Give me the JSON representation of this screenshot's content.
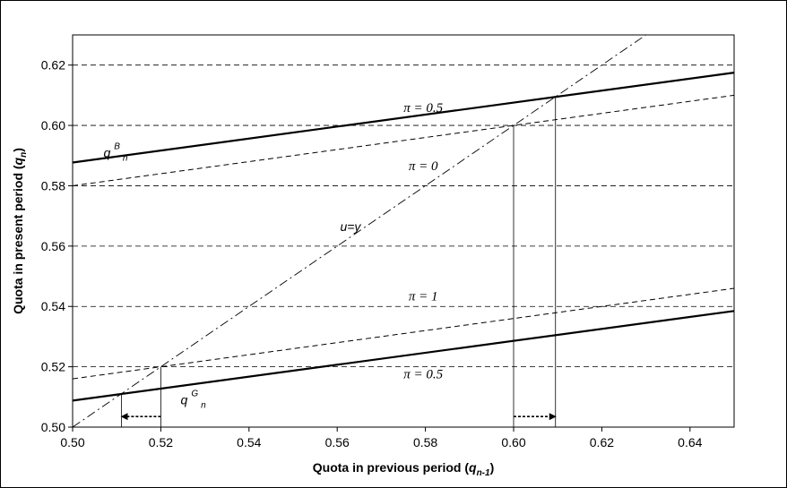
{
  "chart_data": {
    "type": "line",
    "xlabel": {
      "main": "Quota in previous period (",
      "var": "q",
      "sub": "n-1",
      "close": ")"
    },
    "ylabel": {
      "main": "Quota in present period (",
      "var": "q",
      "sub": "n",
      "close": ")"
    },
    "xlim": [
      0.5,
      0.65
    ],
    "ylim": [
      0.5,
      0.63
    ],
    "xticks": [
      "0.50",
      "0.52",
      "0.54",
      "0.56",
      "0.58",
      "0.60",
      "0.62",
      "0.64"
    ],
    "yticks": [
      "0.50",
      "0.52",
      "0.54",
      "0.56",
      "0.58",
      "0.60",
      "0.62"
    ],
    "grid": "horizontal dashed",
    "series": [
      {
        "id": "upper_pi05",
        "style": "solid-thick",
        "x": [
          0.5,
          0.65
        ],
        "y": [
          0.5877,
          0.6175
        ]
      },
      {
        "id": "upper_pi0",
        "style": "dashed",
        "x": [
          0.5,
          0.65
        ],
        "y": [
          0.58,
          0.61
        ]
      },
      {
        "id": "lower_pi1",
        "style": "dashed",
        "x": [
          0.5,
          0.65
        ],
        "y": [
          0.516,
          0.546
        ]
      },
      {
        "id": "lower_pi05",
        "style": "solid-thick",
        "x": [
          0.5,
          0.65
        ],
        "y": [
          0.5088,
          0.5385
        ]
      },
      {
        "id": "diagonal",
        "style": "dashdot",
        "x": [
          0.5,
          0.63
        ],
        "y": [
          0.5,
          0.63
        ]
      }
    ],
    "reference_lines": [
      {
        "x": 0.5111,
        "y_top": 0.5111
      },
      {
        "x": 0.52,
        "y_top": 0.52
      },
      {
        "x": 0.6,
        "y_top": 0.6
      },
      {
        "x": 0.6095,
        "y_top": 0.6095
      }
    ],
    "arrows": [
      {
        "from": 0.52,
        "to": 0.5111,
        "y": 0.5035
      },
      {
        "from": 0.6,
        "to": 0.6095,
        "y": 0.5035
      }
    ],
    "annotations": [
      {
        "id": "pi05_top",
        "text": "π = 0.5",
        "x": 0.5795,
        "y": 0.6045
      },
      {
        "id": "pi0",
        "text": "π = 0",
        "x": 0.5795,
        "y": 0.5852
      },
      {
        "id": "pi1",
        "text": "π = 1",
        "x": 0.5795,
        "y": 0.542
      },
      {
        "id": "pi05_bot",
        "text": "π = 0.5",
        "x": 0.5795,
        "y": 0.5162
      },
      {
        "id": "uy",
        "text": "u=y",
        "x": 0.563,
        "y": 0.565
      }
    ],
    "qB": {
      "base": "q",
      "sup": "B",
      "sub": "n",
      "x": 0.507,
      "y": 0.5895
    },
    "qG": {
      "base": "q",
      "sup": "G",
      "sub": "n",
      "x": 0.5245,
      "y": 0.5075
    }
  }
}
